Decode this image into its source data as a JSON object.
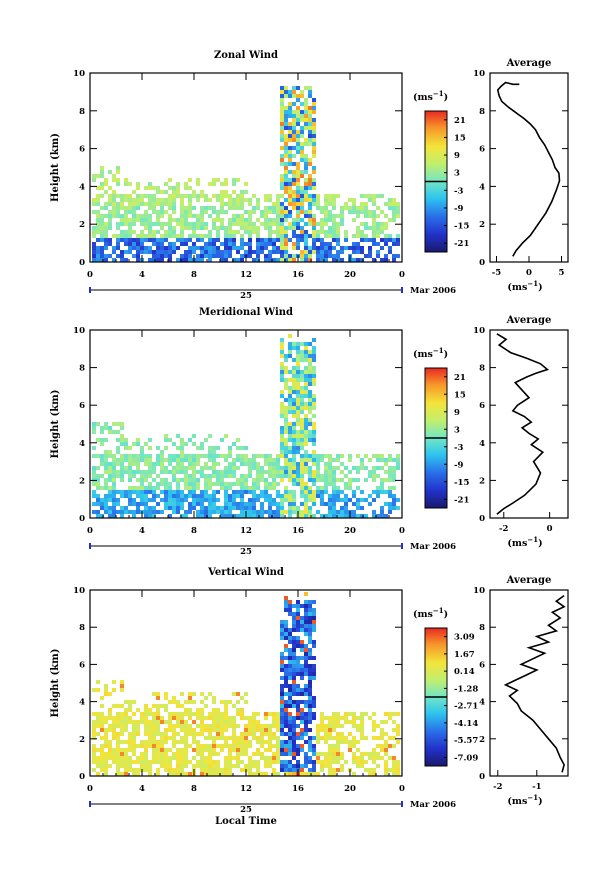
{
  "figure": {
    "xlabel": "Local Time",
    "date_label": "Mar 2006",
    "day_label": "25",
    "average_title": "Average",
    "unit_label": "(ms",
    "unit_exp": "−1",
    "unit_close": ")"
  },
  "chart_data": [
    {
      "type": "heatmap",
      "title": "Zonal Wind",
      "ylabel": "Height (km)",
      "xlabel": "",
      "xlim": [
        0,
        24
      ],
      "ylim": [
        0,
        10
      ],
      "x_ticks": [
        "0",
        "4",
        "8",
        "12",
        "16",
        "20",
        "0"
      ],
      "y_ticks": [
        "0",
        "2",
        "4",
        "6",
        "8",
        "10"
      ],
      "colorbar_ticks": [
        "21",
        "15",
        "9",
        "3",
        "-3",
        "-9",
        "-15",
        "-21"
      ],
      "colorbar_range": [
        -24,
        24
      ]
    },
    {
      "type": "line",
      "title": "Average",
      "xlabel": "(ms-1)",
      "x_ticks": [
        "-5",
        "0",
        "5"
      ],
      "y_ticks": [
        "0",
        "2",
        "4",
        "6",
        "8",
        "10"
      ],
      "xlim": [
        -6,
        6
      ],
      "ylim": [
        0,
        10
      ],
      "series": [
        {
          "x": [
            -2.5,
            -2.0,
            -1.0,
            0.2,
            1.0,
            1.8,
            2.6,
            3.5,
            4.2,
            4.7,
            4.6,
            4.0,
            3.6,
            3.0,
            2.4,
            1.6,
            1.0,
            0.2,
            -0.8,
            -1.6,
            -2.4,
            -3.2,
            -4.2,
            -4.6,
            -4.8,
            -4.3,
            -3.6,
            -2.5,
            -1.5
          ],
          "y": [
            0.3,
            0.6,
            1.0,
            1.4,
            1.8,
            2.2,
            2.6,
            3.2,
            3.8,
            4.3,
            4.7,
            5.0,
            5.4,
            5.8,
            6.2,
            6.6,
            7.0,
            7.3,
            7.6,
            7.8,
            8.0,
            8.2,
            8.5,
            8.8,
            9.1,
            9.3,
            9.5,
            9.4,
            9.4
          ]
        }
      ]
    },
    {
      "type": "heatmap",
      "title": "Meridional Wind",
      "ylabel": "Height (km)",
      "xlabel": "",
      "xlim": [
        0,
        24
      ],
      "ylim": [
        0,
        10
      ],
      "x_ticks": [
        "0",
        "4",
        "8",
        "12",
        "16",
        "20",
        "0"
      ],
      "y_ticks": [
        "0",
        "2",
        "4",
        "6",
        "8",
        "10"
      ],
      "colorbar_ticks": [
        "21",
        "15",
        "9",
        "3",
        "-3",
        "-9",
        "-15",
        "-21"
      ],
      "colorbar_range": [
        -24,
        24
      ]
    },
    {
      "type": "line",
      "title": "Average",
      "xlabel": "(ms-1)",
      "x_ticks": [
        "-2",
        "0"
      ],
      "y_ticks": [
        "0",
        "2",
        "4",
        "6",
        "8",
        "10"
      ],
      "xlim": [
        -2.6,
        0.8
      ],
      "ylim": [
        0,
        10
      ],
      "series": [
        {
          "x": [
            -2.3,
            -2.0,
            -1.6,
            -1.1,
            -0.6,
            -0.4,
            -0.7,
            -0.3,
            -0.8,
            -0.5,
            -0.9,
            -1.2,
            -0.8,
            -1.1,
            -1.6,
            -1.4,
            -0.9,
            -1.2,
            -1.5,
            -1.0,
            -0.6,
            -0.1,
            -0.4,
            -1.0,
            -1.7,
            -2.2,
            -1.9,
            -2.3
          ],
          "y": [
            0.2,
            0.5,
            0.8,
            1.2,
            1.8,
            2.4,
            3.0,
            3.5,
            3.9,
            4.2,
            4.5,
            4.8,
            5.1,
            5.4,
            5.7,
            6.0,
            6.4,
            6.8,
            7.2,
            7.5,
            7.7,
            7.9,
            8.2,
            8.5,
            8.8,
            9.2,
            9.5,
            9.8
          ]
        }
      ]
    },
    {
      "type": "heatmap",
      "title": "Vertical Wind",
      "ylabel": "Height (km)",
      "xlabel": "Local Time",
      "xlim": [
        0,
        24
      ],
      "ylim": [
        0,
        10
      ],
      "x_ticks": [
        "0",
        "4",
        "8",
        "12",
        "16",
        "20",
        "0"
      ],
      "y_ticks": [
        "0",
        "2",
        "4",
        "6",
        "8",
        "10"
      ],
      "colorbar_ticks": [
        "3.09",
        "1.67",
        "0.14",
        "-1.28",
        "-2.71",
        "-4.14",
        "-5.57",
        "-7.09"
      ],
      "colorbar_range": [
        -7.8,
        3.8
      ]
    },
    {
      "type": "line",
      "title": "Average",
      "xlabel": "(ms-1)",
      "x_ticks": [
        "-2",
        "-1"
      ],
      "y_ticks": [
        "0",
        "2",
        "4",
        "6",
        "8",
        "10"
      ],
      "xlim": [
        -2.2,
        -0.2
      ],
      "ylim": [
        0,
        10
      ],
      "series": [
        {
          "x": [
            -0.35,
            -0.3,
            -0.4,
            -0.5,
            -0.7,
            -0.9,
            -1.1,
            -1.4,
            -1.5,
            -1.7,
            -1.5,
            -1.8,
            -1.6,
            -1.3,
            -1.0,
            -1.4,
            -1.1,
            -0.8,
            -1.2,
            -0.7,
            -1.0,
            -0.5,
            -0.7,
            -0.4,
            -0.6,
            -0.3,
            -0.5,
            -0.3
          ],
          "y": [
            0.2,
            0.6,
            1.0,
            1.5,
            2.0,
            2.5,
            3.0,
            3.5,
            3.9,
            4.3,
            4.6,
            4.9,
            5.1,
            5.4,
            5.7,
            6.0,
            6.3,
            6.6,
            6.9,
            7.2,
            7.5,
            7.8,
            8.1,
            8.5,
            8.8,
            9.1,
            9.4,
            9.7
          ]
        }
      ]
    }
  ]
}
